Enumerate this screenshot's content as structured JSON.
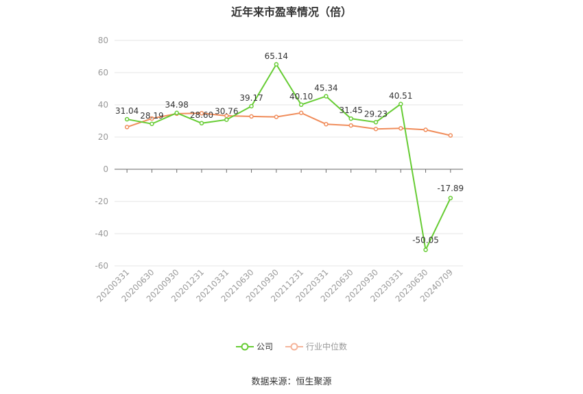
{
  "chart_data": {
    "type": "line",
    "title": "近年来市盈率情况（倍）",
    "categories": [
      "20200331",
      "20200630",
      "20200930",
      "20201231",
      "20210331",
      "20210630",
      "20210930",
      "20211231",
      "20220331",
      "20220630",
      "20220930",
      "20230331",
      "20230630",
      "20240709"
    ],
    "series": [
      {
        "name": "公司",
        "color": "#66cc33",
        "values": [
          31.04,
          28.19,
          34.98,
          28.6,
          30.76,
          39.17,
          65.14,
          40.1,
          45.34,
          31.45,
          29.23,
          40.51,
          -50.05,
          -17.89
        ],
        "labels": [
          "31.04",
          "28.19",
          "34.98",
          "28.60",
          "30.76",
          "39.17",
          "65.14",
          "40.10",
          "45.34",
          "31.45",
          "29.23",
          "40.51",
          "-50.05",
          "-17.89"
        ]
      },
      {
        "name": "行业中位数",
        "color": "#f08c5a",
        "values": [
          26.2,
          31.5,
          34.5,
          34.8,
          33.2,
          32.8,
          32.5,
          35.0,
          28.0,
          27.2,
          25.0,
          25.4,
          24.5,
          21.0
        ]
      }
    ],
    "ylim": [
      -60,
      80
    ],
    "yticks": [
      "80",
      "60",
      "40",
      "20",
      "0",
      "-20",
      "-40",
      "-60"
    ],
    "grid": true,
    "legend_position": "bottom"
  },
  "source": "数据来源：恒生聚源"
}
